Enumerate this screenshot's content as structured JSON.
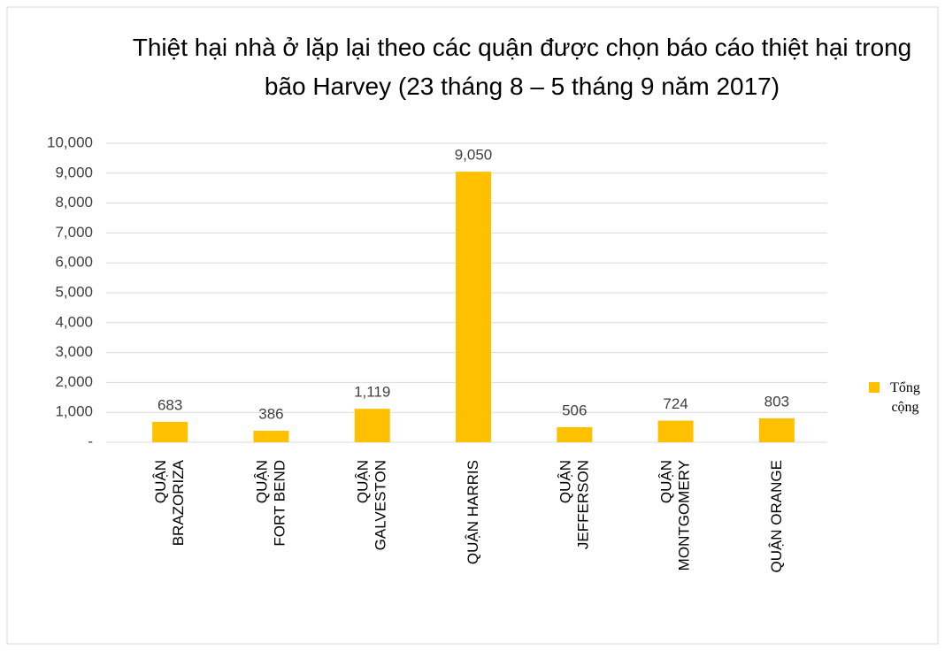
{
  "chart_data": {
    "type": "bar",
    "title": "Thiệt hại nhà ở lặp lại theo các quận được chọn báo cáo thiệt hại trong bão Harvey (23 tháng 8 – 5 tháng 9 năm 2017)",
    "categories": [
      "QUẬN\nBRAZORIZA",
      "QUẬN\nFORT BEND",
      "QUẬN\nGALVESTON",
      "QUẬN HARRIS",
      "QUẬN\nJEFFERSON",
      "QUẬN\nMONTGOMERY",
      "QUẬN ORANGE"
    ],
    "series": [
      {
        "name": "Tổng cộng",
        "color": "#ffc000",
        "values": [
          683,
          386,
          1119,
          9050,
          506,
          724,
          803
        ],
        "value_labels": [
          "683",
          "386",
          "1,119",
          "9,050",
          "506",
          "724",
          "803"
        ]
      }
    ],
    "ylim": [
      0,
      10000
    ],
    "yticks": [
      {
        "value": 0,
        "label": "-"
      },
      {
        "value": 1000,
        "label": "1,000"
      },
      {
        "value": 2000,
        "label": "2,000"
      },
      {
        "value": 3000,
        "label": "3,000"
      },
      {
        "value": 4000,
        "label": "4,000"
      },
      {
        "value": 5000,
        "label": "5,000"
      },
      {
        "value": 6000,
        "label": "6,000"
      },
      {
        "value": 7000,
        "label": "7,000"
      },
      {
        "value": 8000,
        "label": "8,000"
      },
      {
        "value": 9000,
        "label": "9,000"
      },
      {
        "value": 10000,
        "label": "10,000"
      }
    ],
    "grid": true,
    "legend": "right"
  }
}
